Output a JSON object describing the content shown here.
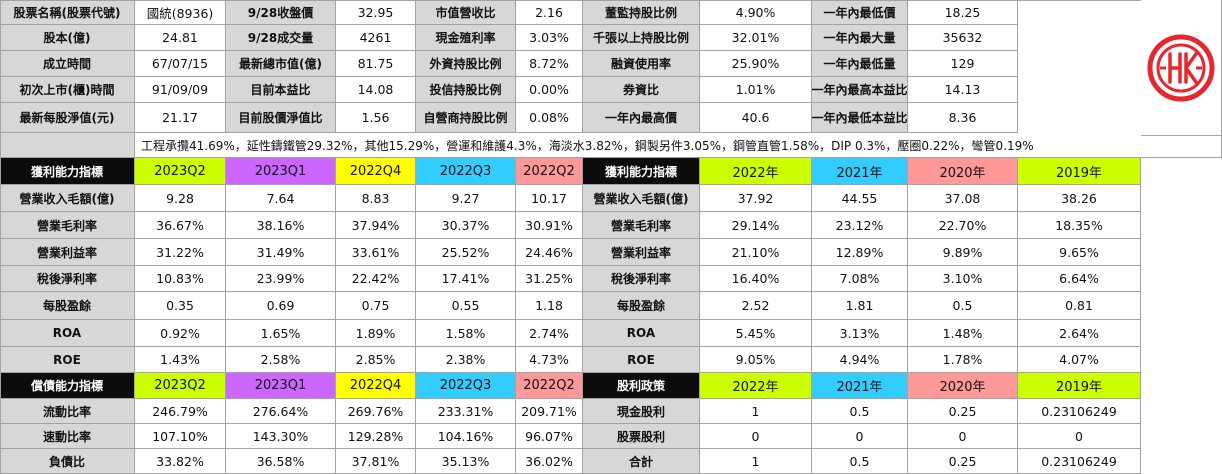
{
  "colors": {
    "label_bg": "#d7d7d7",
    "header_bg": "#0c0c0c",
    "q2_2023": "#ccff00",
    "q1_2023": "#cc66ff",
    "q4_2022": "#ffff00",
    "q3_2022": "#33ccff",
    "q2_2022": "#ff9999",
    "logo_red": "#e8262b"
  },
  "logo": {
    "icon": "company-logo-icon"
  },
  "info_rows": [
    [
      "股票名稱(股票代號)",
      "國統(8936)",
      "9/28收盤價",
      "32.95",
      "市值營收比",
      "2.16",
      "董監持股比例",
      "4.90%",
      "一年內最低價",
      "18.25"
    ],
    [
      "股本(億)",
      "24.81",
      "9/28成交量",
      "4261",
      "現金殖利率",
      "3.03%",
      "千張以上持股比例",
      "32.01%",
      "一年內最大量",
      "35632"
    ],
    [
      "成立時間",
      "67/07/15",
      "最新總市值(億)",
      "81.75",
      "外資持股比例",
      "8.72%",
      "融資使用率",
      "25.90%",
      "一年內最低量",
      "129"
    ],
    [
      "初次上市(櫃)時間",
      "91/09/09",
      "目前本益比",
      "14.08",
      "投信持股比例",
      "0.00%",
      "券資比",
      "1.01%",
      "一年內最高本益比",
      "14.13"
    ],
    [
      "最新每股淨值(元)",
      "21.17",
      "目前股價淨值比",
      "1.56",
      "自營商持股比例",
      "0.08%",
      "一年內最高價",
      "40.6",
      "一年內最低本益比",
      "8.36"
    ]
  ],
  "segment_text": "工程承攬41.69%，延性鑄鐵管29.32%，其他15.29%，營運和維護4.3%，海淡水3.82%，鋼製另件3.05%，鋼管直管1.58%，DIP 0.3%，壓圈0.22%，彎管0.19%",
  "profit_header": [
    "獲利能力指標",
    "2023Q2",
    "2023Q1",
    "2022Q4",
    "2022Q3",
    "2022Q2",
    "獲利能力指標",
    "2022年",
    "2021年",
    "2020年",
    "2019年"
  ],
  "profit_rows": [
    [
      "營業收入毛額(億)",
      "9.28",
      "7.64",
      "8.83",
      "9.27",
      "10.17",
      "營業收入毛額(億)",
      "37.92",
      "44.55",
      "37.08",
      "38.26"
    ],
    [
      "營業毛利率",
      "36.67%",
      "38.16%",
      "37.94%",
      "30.37%",
      "30.91%",
      "營業毛利率",
      "29.14%",
      "23.12%",
      "22.70%",
      "18.35%"
    ],
    [
      "營業利益率",
      "31.22%",
      "31.49%",
      "33.61%",
      "25.52%",
      "24.46%",
      "營業利益率",
      "21.10%",
      "12.89%",
      "9.89%",
      "9.65%"
    ],
    [
      "稅後淨利率",
      "10.83%",
      "23.99%",
      "22.42%",
      "17.41%",
      "31.25%",
      "稅後淨利率",
      "16.40%",
      "7.08%",
      "3.10%",
      "6.64%"
    ],
    [
      "每股盈餘",
      "0.35",
      "0.69",
      "0.75",
      "0.55",
      "1.18",
      "每股盈餘",
      "2.52",
      "1.81",
      "0.5",
      "0.81"
    ],
    [
      "ROA",
      "0.92%",
      "1.65%",
      "1.89%",
      "1.58%",
      "2.74%",
      "ROA",
      "5.45%",
      "3.13%",
      "1.48%",
      "2.64%"
    ],
    [
      "ROE",
      "1.43%",
      "2.58%",
      "2.85%",
      "2.38%",
      "4.73%",
      "ROE",
      "9.05%",
      "4.94%",
      "1.78%",
      "4.07%"
    ]
  ],
  "debt_header": [
    "償債能力指標",
    "2023Q2",
    "2023Q1",
    "2022Q4",
    "2022Q3",
    "2022Q2",
    "股利政策",
    "2022年",
    "2021年",
    "2020年",
    "2019年"
  ],
  "debt_rows": [
    [
      "流動比率",
      "246.79%",
      "276.64%",
      "269.76%",
      "233.31%",
      "209.71%",
      "現金股利",
      "1",
      "0.5",
      "0.25",
      "0.23106249"
    ],
    [
      "速動比率",
      "107.10%",
      "143.30%",
      "129.28%",
      "104.16%",
      "96.07%",
      "股票股利",
      "0",
      "0",
      "0",
      "0"
    ],
    [
      "負債比",
      "33.82%",
      "36.58%",
      "37.81%",
      "35.13%",
      "36.02%",
      "合計",
      "1",
      "0.5",
      "0.25",
      "0.23106249"
    ]
  ]
}
